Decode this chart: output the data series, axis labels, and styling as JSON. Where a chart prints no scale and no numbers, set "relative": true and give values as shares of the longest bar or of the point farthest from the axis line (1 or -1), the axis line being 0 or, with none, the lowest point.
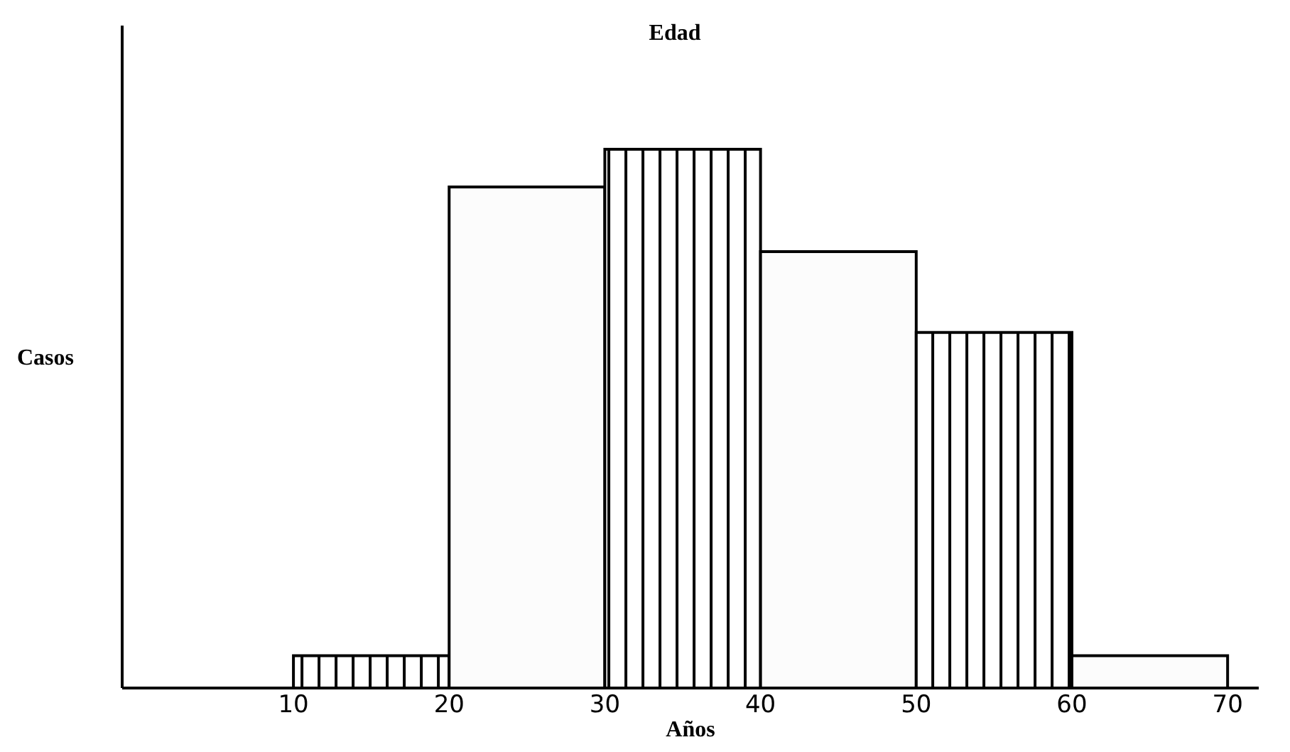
{
  "chart_data": {
    "type": "bar",
    "title": "Edad",
    "xlabel": "Años",
    "ylabel": "Casos",
    "relative": true,
    "x": [
      15,
      25,
      35,
      45,
      55,
      65
    ],
    "values": [
      0.06,
      0.93,
      1,
      0.81,
      0.66,
      0.06
    ],
    "colors": [
      "#000000",
      "#fcfcfc",
      "#000000",
      "#fcfcfc",
      "#000000",
      "#fcfcfc"
    ],
    "xlim": [
      -1,
      72
    ],
    "xticks": [
      10,
      20,
      30,
      40,
      50,
      60,
      70
    ],
    "grid": false
  }
}
